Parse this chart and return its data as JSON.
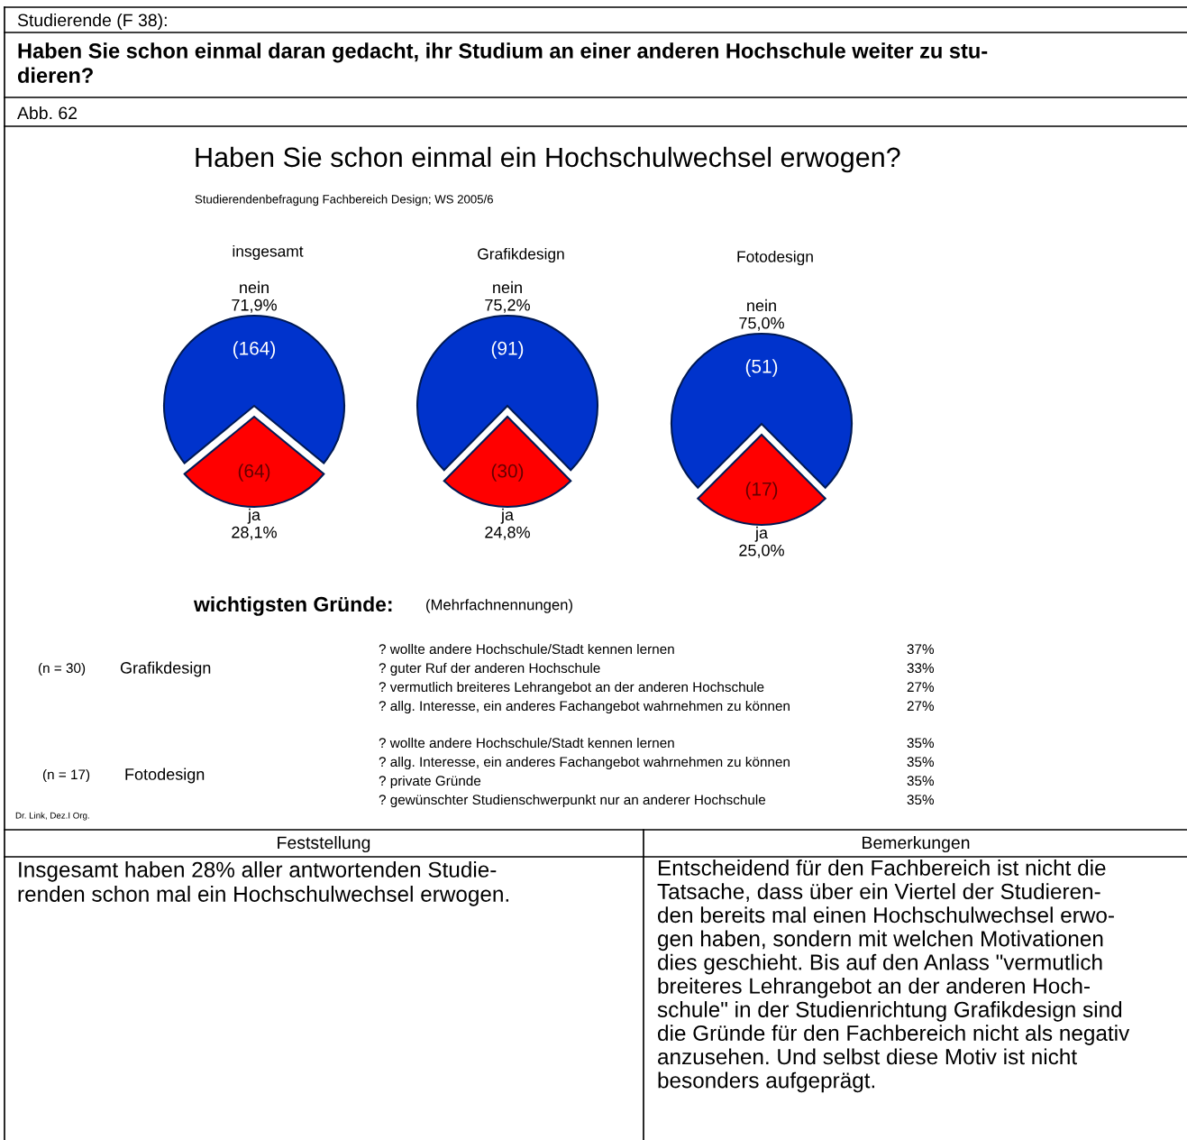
{
  "chart_data": [
    {
      "type": "pie",
      "title": "insgesamt",
      "categories": [
        "nein",
        "ja"
      ],
      "values": [
        71.9,
        28.1
      ],
      "colors": [
        "#0033cc",
        "#ff0000"
      ],
      "value_labels": [
        "71,9%",
        "28,1%"
      ],
      "annotations": [
        {
          "text": "(164)",
          "x": "nein"
        },
        {
          "text": "(64)",
          "x": "ja"
        }
      ]
    },
    {
      "type": "pie",
      "title": "Grafikdesign",
      "categories": [
        "nein",
        "ja"
      ],
      "values": [
        75.2,
        24.8
      ],
      "colors": [
        "#0033cc",
        "#ff0000"
      ],
      "value_labels": [
        "75,2%",
        "24,8%"
      ],
      "annotations": [
        {
          "text": "(91)",
          "x": "nein"
        },
        {
          "text": "(30)",
          "x": "ja"
        }
      ]
    },
    {
      "type": "pie",
      "title": "Fotodesign",
      "categories": [
        "nein",
        "ja"
      ],
      "values": [
        75.0,
        25.0
      ],
      "colors": [
        "#0033cc",
        "#ff0000"
      ],
      "value_labels": [
        "75,0%",
        "25,0%"
      ],
      "annotations": [
        {
          "text": "(51)",
          "x": "nein"
        },
        {
          "text": "(17)",
          "x": "ja"
        }
      ]
    },
    {
      "type": "other",
      "title": "Haben Sie schon einmal ein Hochschulwechsel erwogen?",
      "subtitle": "Studierendenbefragung Fachbereich Design; WS 2005/6",
      "annotations": [
        "Studierende (F 38):",
        "Haben Sie schon einmal daran gedacht, ihr Studium an einer anderen Hochschule weiter zu stu-\ndieren?",
        "Abb. 62",
        "wichtigsten Gründe:",
        "(Mehrfachnennungen)",
        "(n = 30)",
        "Grafikdesign",
        "? wollte andere Hochschule/Stadt kennen lernen",
        "? guter Ruf der anderen Hochschule",
        "? vermutlich breiteres Lehrangebot an der anderen Hochschule",
        "? allg. Interesse, ein anderes Fachangebot wahrnehmen zu können",
        "37%",
        "33%",
        "27%",
        "27%",
        "(n = 17)",
        "Fotodesign",
        "? wollte andere Hochschule/Stadt kennen lernen",
        "? allg. Interesse, ein anderes Fachangebot wahrnehmen zu können",
        "? private Gründe",
        "? gewünschter Studienschwerpunkt nur an anderer Hochschule",
        "35%",
        "35%",
        "35%",
        "35%",
        "Dr. Link, Dez.I Org.",
        "Feststellung",
        "Bemerkungen",
        "Insgesamt haben 28% aller antwortenden Studie-\nrenden schon mal ein Hochschulwechsel erwogen.",
        "Entscheidend für den Fachbereich ist nicht die\nTatsache, dass über ein Viertel der Studieren-\nden bereits mal einen Hochschulwechsel erwo-\ngen haben, sondern mit welchen Motivationen\ndies geschieht. Bis auf den Anlass \"vermutlich\nbreiteres Lehrangebot an der anderen Hoch-\nschule\" in der Studienrichtung Grafikdesign sind\ndie Gründe für den Fachbereich nicht als negativ\nanzusehen. Und selbst diese Motiv ist nicht\nbesonders aufgeprägt."
      ]
    }
  ]
}
